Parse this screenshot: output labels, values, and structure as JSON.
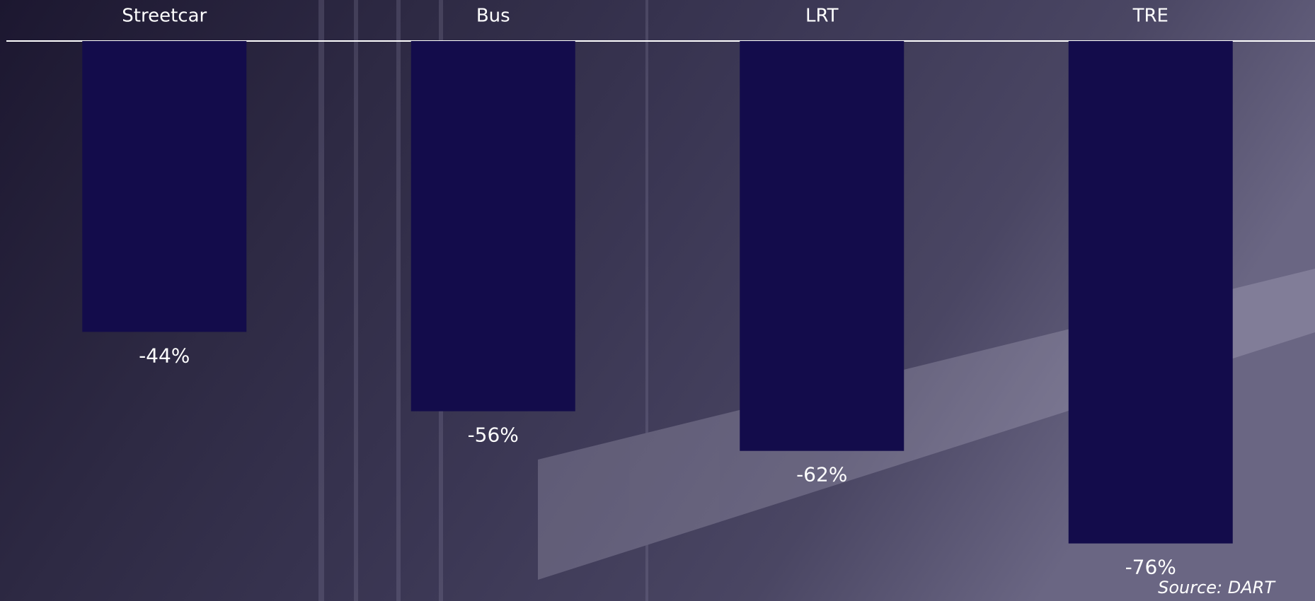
{
  "chart_data": {
    "type": "bar",
    "categories": [
      "Streetcar",
      "Bus",
      "LRT",
      "TRE"
    ],
    "values": [
      -44,
      -56,
      -62,
      -76
    ],
    "value_labels": [
      "-44%",
      "-56%",
      "-62%",
      "-76%"
    ],
    "color": "#130c4b",
    "ylim": [
      -80,
      0
    ],
    "source": "Source: DART"
  }
}
